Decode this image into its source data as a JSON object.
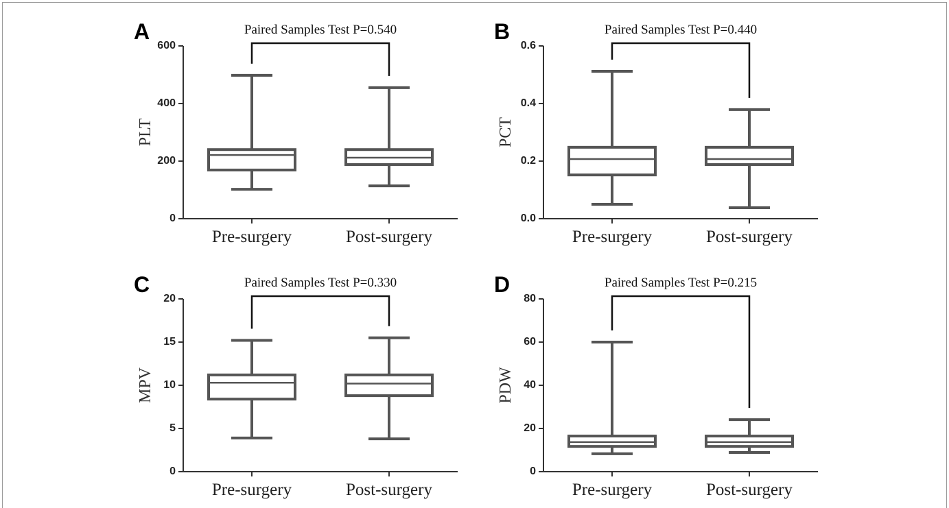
{
  "chart_data": [
    {
      "type": "box",
      "panel": "A",
      "title": "Paired Samples Test P=0.540",
      "ylabel": "PLT",
      "categories": [
        "Pre-surgery",
        "Post-surgery"
      ],
      "color": "#555555",
      "boxes": [
        {
          "min": 102,
          "q1": 169,
          "median": 221,
          "q3": 240,
          "max": 498
        },
        {
          "min": 114,
          "q1": 188,
          "median": 212,
          "q3": 240,
          "max": 455
        }
      ],
      "ylim": [
        0,
        600
      ],
      "yticks": [
        0,
        200,
        400,
        600
      ]
    },
    {
      "type": "box",
      "panel": "B",
      "title": "Paired Samples Test P=0.440",
      "ylabel": "PCT",
      "categories": [
        "Pre-surgery",
        "Post-surgery"
      ],
      "color": "#555555",
      "boxes": [
        {
          "min": 0.05,
          "q1": 0.152,
          "median": 0.207,
          "q3": 0.248,
          "max": 0.512
        },
        {
          "min": 0.038,
          "q1": 0.188,
          "median": 0.207,
          "q3": 0.248,
          "max": 0.379
        }
      ],
      "ylim": [
        0,
        0.6
      ],
      "yticks": [
        {
          "value": 0,
          "label": "0.0"
        },
        0.2,
        0.4,
        0.6
      ]
    },
    {
      "type": "box",
      "panel": "C",
      "title": "Paired Samples Test P=0.330",
      "ylabel": "MPV",
      "categories": [
        "Pre-surgery",
        "Post-surgery"
      ],
      "color": "#555555",
      "boxes": [
        {
          "min": 3.9,
          "q1": 8.4,
          "median": 10.3,
          "q3": 11.2,
          "max": 15.2
        },
        {
          "min": 3.8,
          "q1": 8.8,
          "median": 10.2,
          "q3": 11.2,
          "max": 15.5
        }
      ],
      "ylim": [
        0,
        20
      ],
      "yticks": [
        0,
        5,
        10,
        15,
        20
      ]
    },
    {
      "type": "box",
      "panel": "D",
      "title": "Paired Samples Test P=0.215",
      "ylabel": "PDW",
      "categories": [
        "Pre-surgery",
        "Post-surgery"
      ],
      "color": "#555555",
      "boxes": [
        {
          "min": 8.3,
          "q1": 11.7,
          "median": 13.7,
          "q3": 16.5,
          "max": 60
        },
        {
          "min": 8.9,
          "q1": 11.7,
          "median": 13.7,
          "q3": 16.5,
          "max": 24.1
        }
      ],
      "ylim": [
        0,
        80
      ],
      "yticks": [
        0,
        20,
        40,
        60,
        80
      ]
    }
  ]
}
